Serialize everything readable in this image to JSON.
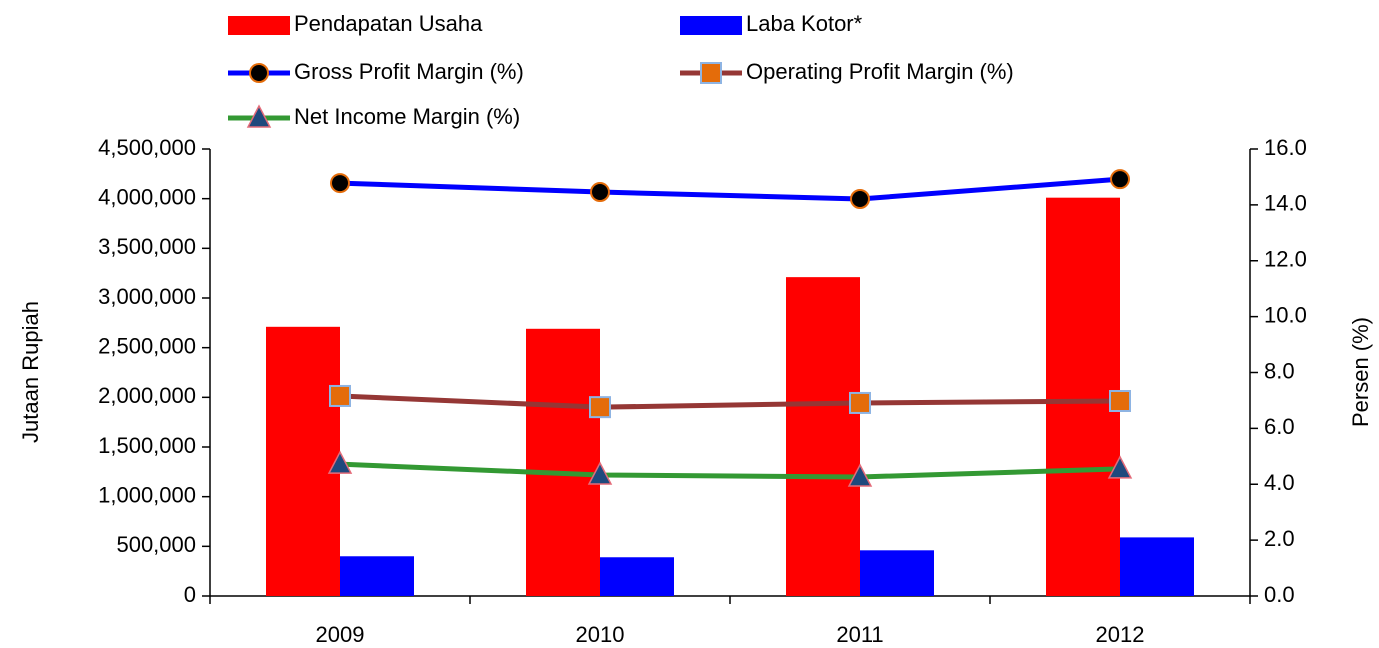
{
  "chart_data": {
    "type": "bar",
    "categories": [
      "2009",
      "2010",
      "2011",
      "2012"
    ],
    "y_label": "Jutaan Rupiah",
    "y2_label": "Persen (%)",
    "ylim": [
      0,
      4500000
    ],
    "yticks": [
      0,
      {
        "value": 500000,
        "label": "500,000"
      },
      {
        "value": 1000000,
        "label": "1,000,000"
      },
      {
        "value": 1500000,
        "label": "1,500,000"
      },
      {
        "value": 2000000,
        "label": "2,000,000"
      },
      {
        "value": 2500000,
        "label": "2,500,000"
      },
      {
        "value": 3000000,
        "label": "3,000,000"
      },
      {
        "value": 3500000,
        "label": "3,500,000"
      },
      {
        "value": 4000000,
        "label": "4,000,000"
      },
      {
        "value": 4500000,
        "label": "4,500,000"
      }
    ],
    "y2lim": [
      0,
      16
    ],
    "y2ticks": [
      {
        "value": 0,
        "label": "0.0"
      },
      {
        "value": 2,
        "label": "2.0"
      },
      {
        "value": 4,
        "label": "4.0"
      },
      {
        "value": 6,
        "label": "6.0"
      },
      {
        "value": 8,
        "label": "8.0"
      },
      {
        "value": 10,
        "label": "10.0"
      },
      {
        "value": 12,
        "label": "12.0"
      },
      {
        "value": 14,
        "label": "14.0"
      },
      {
        "value": 16,
        "label": "16.0"
      }
    ],
    "grid": false,
    "series": [
      {
        "name": "Pendapatan Usaha",
        "type": "bar",
        "color": "#ff0000",
        "values": [
          2710000,
          2690000,
          3210000,
          4010000
        ]
      },
      {
        "name": "Laba Kotor*",
        "type": "bar",
        "color": "#0000ff",
        "values": [
          400000,
          390000,
          460000,
          590000
        ]
      },
      {
        "name": "Gross Profit Margin (%)",
        "type": "line",
        "axis": "y2",
        "color": "#0000ff",
        "marker": "circle",
        "marker_color": "#000000",
        "values": [
          14.78,
          14.46,
          14.21,
          14.92
        ]
      },
      {
        "name": "Operating Profit Margin (%)",
        "type": "line",
        "axis": "y2",
        "color": "#953735",
        "marker": "square",
        "marker_color": "#e46c0a",
        "values": [
          7.16,
          6.76,
          6.91,
          6.98
        ]
      },
      {
        "name": "Net Income Margin (%)",
        "type": "line",
        "axis": "y2",
        "color": "#339933",
        "marker": "triangle",
        "marker_color": "#1f497d",
        "values": [
          4.72,
          4.33,
          4.26,
          4.55
        ]
      }
    ]
  }
}
